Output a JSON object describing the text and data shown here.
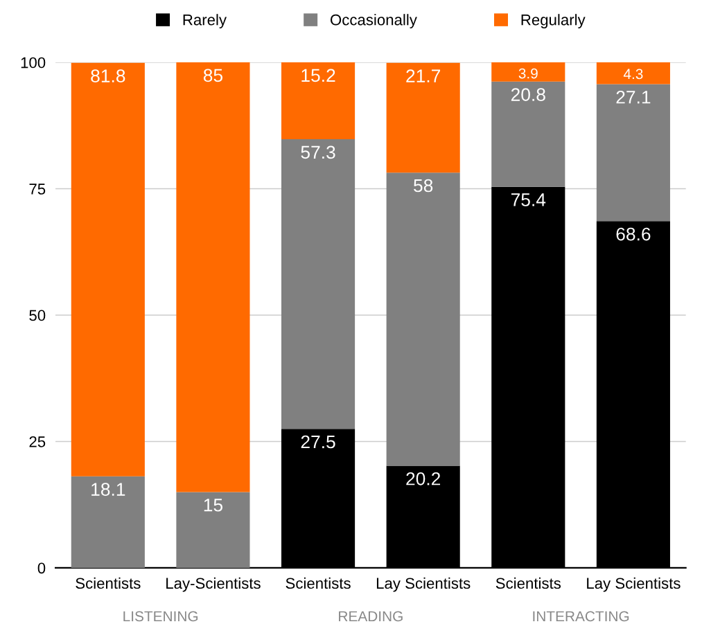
{
  "chart_data": {
    "type": "bar",
    "stacked": true,
    "categories": [
      "Scientists",
      "Lay-Scientists",
      "Scientists",
      "Lay Scientists",
      "Scientists",
      "Lay Scientists"
    ],
    "series": [
      {
        "name": "Rarely",
        "color": "#000000",
        "values": [
          null,
          null,
          27.5,
          20.2,
          75.4,
          68.6
        ]
      },
      {
        "name": "Occasionally",
        "color": "#808080",
        "values": [
          18.1,
          15,
          57.3,
          58,
          20.8,
          27.1
        ]
      },
      {
        "name": "Regularly",
        "color": "#ff6a00",
        "values": [
          81.8,
          85,
          15.2,
          21.7,
          3.9,
          4.3
        ]
      }
    ],
    "ylim": [
      0,
      100
    ],
    "yticks": [
      0,
      25,
      50,
      75,
      100
    ],
    "grid": "y",
    "legend": "top",
    "data_labels": true,
    "annotations": [
      "LISTENING",
      "READING",
      "INTERACTING"
    ]
  }
}
